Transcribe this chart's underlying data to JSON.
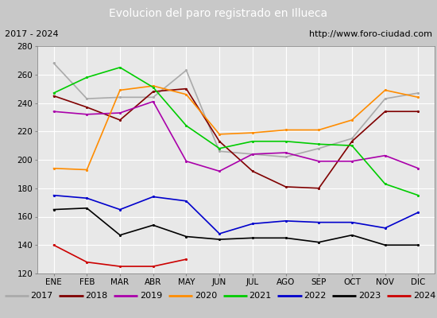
{
  "title": "Evolucion del paro registrado en Illueca",
  "subtitle_left": "2017 - 2024",
  "subtitle_right": "http://www.foro-ciudad.com",
  "months": [
    "ENE",
    "FEB",
    "MAR",
    "ABR",
    "MAY",
    "JUN",
    "JUL",
    "AGO",
    "SEP",
    "OCT",
    "NOV",
    "DIC"
  ],
  "ylim": [
    120,
    280
  ],
  "yticks": [
    120,
    140,
    160,
    180,
    200,
    220,
    240,
    260,
    280
  ],
  "series": {
    "2017": {
      "color": "#aaaaaa",
      "values": [
        268,
        243,
        244,
        244,
        263,
        206,
        204,
        202,
        208,
        215,
        243,
        247
      ]
    },
    "2018": {
      "color": "#800000",
      "values": [
        245,
        237,
        228,
        248,
        250,
        213,
        192,
        181,
        180,
        213,
        234,
        234
      ]
    },
    "2019": {
      "color": "#aa00aa",
      "values": [
        234,
        232,
        233,
        241,
        199,
        192,
        204,
        205,
        199,
        199,
        203,
        194
      ]
    },
    "2020": {
      "color": "#ff8c00",
      "values": [
        194,
        193,
        249,
        252,
        246,
        218,
        219,
        221,
        221,
        228,
        249,
        244
      ]
    },
    "2021": {
      "color": "#00cc00",
      "values": [
        247,
        258,
        265,
        251,
        224,
        208,
        213,
        213,
        211,
        210,
        183,
        175
      ]
    },
    "2022": {
      "color": "#0000cc",
      "values": [
        175,
        173,
        165,
        174,
        171,
        148,
        155,
        157,
        156,
        156,
        152,
        163
      ]
    },
    "2023": {
      "color": "#000000",
      "values": [
        165,
        166,
        147,
        154,
        146,
        144,
        145,
        145,
        142,
        147,
        140,
        140
      ]
    },
    "2024": {
      "color": "#cc0000",
      "values": [
        140,
        128,
        125,
        125,
        130,
        null,
        null,
        null,
        null,
        null,
        null,
        null
      ]
    }
  },
  "title_bgcolor": "#4472c4",
  "title_fgcolor": "#ffffff",
  "subtitle_bgcolor": "#e0e0e0",
  "plot_bgcolor": "#e8e8e8",
  "grid_color": "#ffffff",
  "outer_bgcolor": "#c8c8c8"
}
